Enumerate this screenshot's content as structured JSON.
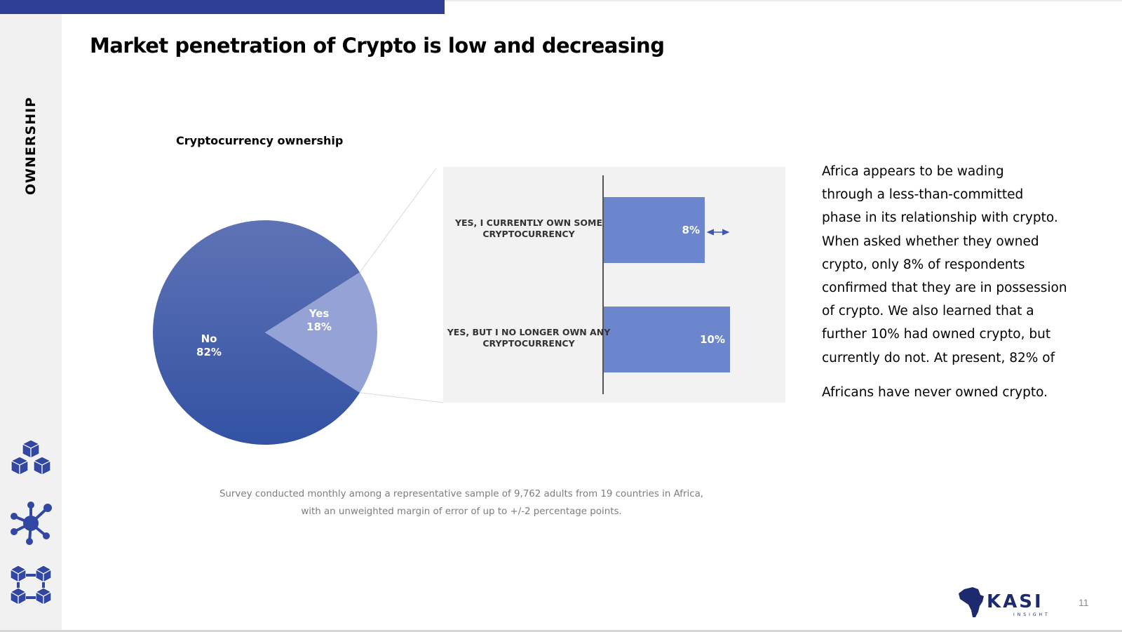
{
  "header": {
    "title": "Market penetration of Crypto is low and decreasing",
    "section": "OWNERSHIP",
    "accent_color": "#2e3f94"
  },
  "sidebar": {
    "icons": [
      "cubes-icon",
      "network-icon",
      "linked-blocks-icon"
    ],
    "icon_color": "#3147a1"
  },
  "chart_data": [
    {
      "type": "pie",
      "title": "Cryptocurrency ownership",
      "slices": [
        {
          "label": "No",
          "value": 82,
          "display": "82%",
          "color": "#3f58ab"
        },
        {
          "label": "Yes",
          "value": 18,
          "display": "18%",
          "color": "#95a2d6"
        }
      ]
    },
    {
      "type": "bar",
      "orientation": "horizontal",
      "categories": [
        "YES, I CURRENTLY OWN SOME CRYPTOCURRENCY",
        "YES, BUT I NO LONGER OWN ANY CRYPTOCURRENCY"
      ],
      "category_lines": [
        [
          "YES, I CURRENTLY OWN SOME",
          "CRYPTOCURRENCY"
        ],
        [
          "YES, BUT I NO LONGER OWN ANY",
          "CRYPTOCURRENCY"
        ]
      ],
      "values": [
        8,
        10
      ],
      "labels": [
        "8%",
        "10%"
      ],
      "xlim": [
        0,
        10
      ],
      "bar_color": "#6b86cc",
      "background": "#f2f2f2"
    }
  ],
  "narrative": {
    "lines": [
      "Africa appears to be wading",
      "through a less-than-committed",
      "phase in its relationship with crypto.",
      "When asked whether they owned",
      "crypto, only 8% of respondents",
      "confirmed that they are in possession",
      "of crypto. We also learned that a",
      "further 10% had owned crypto, but",
      "currently do not. At present, 82% of"
    ],
    "last_line": "Africans have never owned crypto."
  },
  "footnote": {
    "line1": "Survey conducted monthly among a representative sample of 9,762 adults from 19 countries in Africa,",
    "line2": "with an unweighted margin of error of up to +/-2 percentage points."
  },
  "footer": {
    "logo_text": "KASI",
    "logo_subtext": "INSIGHT",
    "logo_color": "#1e2a6e",
    "page_number": "11"
  }
}
